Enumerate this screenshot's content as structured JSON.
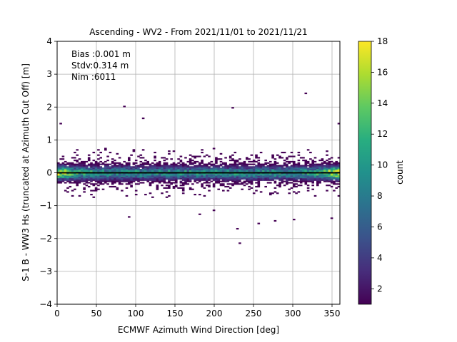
{
  "chart_data": {
    "type": "heatmap",
    "title": "Ascending - WV2 - From 2021/11/01 to 2021/11/21",
    "xlabel": "ECMWF Azimuth Wind Direction [deg]",
    "ylabel": "S-1 B - WW3 Hs (truncated at Azimuth Cut Off) [m]",
    "xlim": [
      0,
      360
    ],
    "ylim": [
      -4,
      4
    ],
    "xticks": [
      "0",
      "50",
      "100",
      "150",
      "200",
      "250",
      "300",
      "350"
    ],
    "yticks": [
      "−4",
      "−3",
      "−2",
      "−1",
      "0",
      "1",
      "2",
      "3",
      "4"
    ],
    "grid": true,
    "colorbar": {
      "label": "count",
      "min": 1,
      "max": 18,
      "ticks": [
        "2",
        "4",
        "6",
        "8",
        "10",
        "12",
        "14",
        "16",
        "18"
      ],
      "colormap": "viridis"
    },
    "annotations": [
      {
        "label": "Bias :",
        "value": "0.001 m"
      },
      {
        "label": "Stdv:",
        "value": "0.314 m"
      },
      {
        "label": "Nim :",
        "value": "6011"
      }
    ],
    "reference_line": {
      "y": 0,
      "color": "#000000"
    },
    "density": {
      "center_y": 0,
      "core_sigma_m": 0.12,
      "spread_sigma_m": 0.3,
      "peak_count": 18,
      "peak_near_x": [
        0,
        360
      ]
    },
    "outliers": [
      {
        "x": 85,
        "y": 2.02
      },
      {
        "x": 108,
        "y": 1.67
      },
      {
        "x": 223,
        "y": 1.99
      },
      {
        "x": 315,
        "y": 2.4
      },
      {
        "x": 233,
        "y": -2.15
      },
      {
        "x": 228,
        "y": -1.72
      },
      {
        "x": 277,
        "y": -1.45
      },
      {
        "x": 300,
        "y": -1.42
      },
      {
        "x": 348,
        "y": -1.4
      },
      {
        "x": 92,
        "y": -1.34
      },
      {
        "x": 4,
        "y": 1.48
      },
      {
        "x": 360,
        "y": 1.48
      },
      {
        "x": 255,
        "y": -1.55
      },
      {
        "x": 200,
        "y": -1.15
      },
      {
        "x": 182,
        "y": -1.25
      }
    ]
  }
}
